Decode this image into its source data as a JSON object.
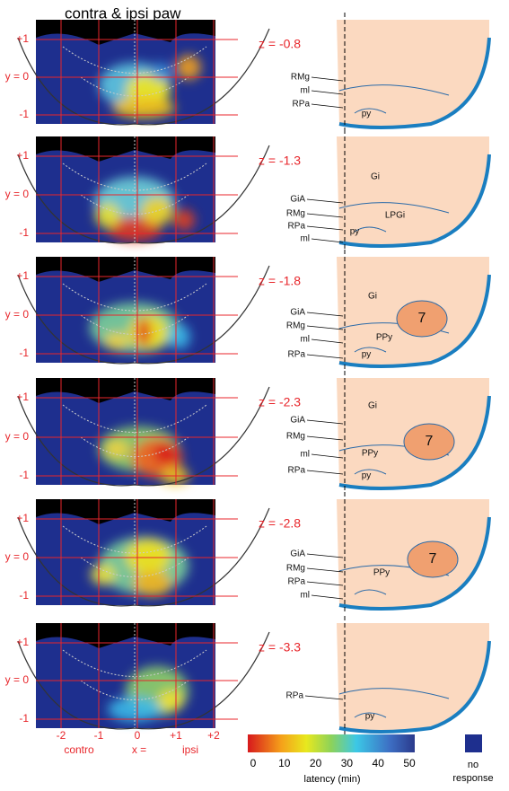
{
  "title": "contra & ipsi paw",
  "y_ticks": [
    "+1",
    "y = 0",
    "-1"
  ],
  "panels": [
    {
      "z": "z = -0.8",
      "atlas_labels": [
        "RMg",
        "ml",
        "RPa",
        "py"
      ]
    },
    {
      "z": "z = -1.3",
      "atlas_labels": [
        "Gi",
        "GiA",
        "RMg",
        "RPa",
        "ml",
        "LPGi",
        "py"
      ]
    },
    {
      "z": "z = -1.8",
      "atlas_labels": [
        "Gi",
        "GiA",
        "RMg",
        "ml",
        "RPa",
        "PPy",
        "7",
        "py"
      ]
    },
    {
      "z": "z = -2.3",
      "atlas_labels": [
        "Gi",
        "GiA",
        "RMg",
        "ml",
        "RPa",
        "PPy",
        "7",
        "py"
      ]
    },
    {
      "z": "z = -2.8",
      "atlas_labels": [
        "GiA",
        "RMg",
        "RPa",
        "ml",
        "PPy",
        "7"
      ]
    },
    {
      "z": "z = -3.3",
      "atlas_labels": [
        "RPa",
        "py"
      ]
    }
  ],
  "x_axis": {
    "ticks": [
      "-2",
      "-1",
      "0",
      "+1",
      "+2"
    ],
    "labels": [
      "contro",
      "x =",
      "ipsi"
    ]
  },
  "colorbar": {
    "ticks": [
      0,
      10,
      20,
      30,
      40,
      50
    ],
    "label": "latency (min)",
    "no_response": [
      "no",
      "response"
    ]
  }
}
